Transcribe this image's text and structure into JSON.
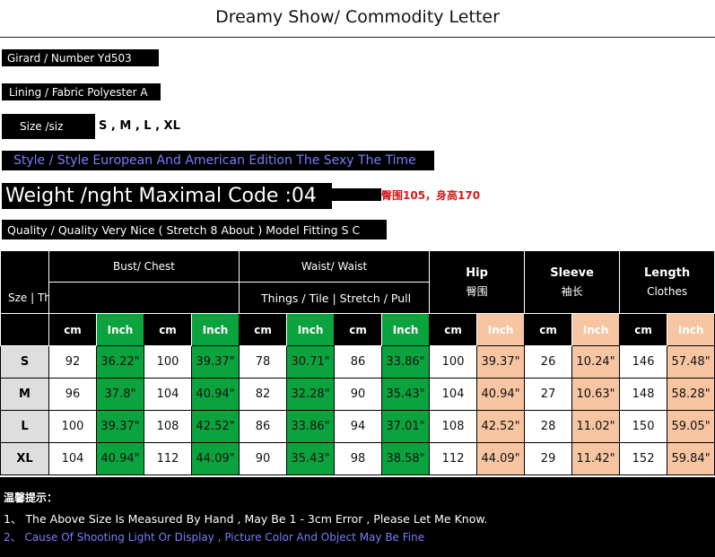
{
  "title": "Dreamy Show/ Commodity Letter",
  "info": {
    "number": "Girard / Number Yd503",
    "fabric": "Lining / Fabric Polyester A",
    "size_label": "Size /siz",
    "sizes": "S , M , L , XL",
    "style": "Style / Style European And American Edition The Sexy The Time",
    "weight": "Weight /nght Maximal Code :04",
    "model_note": "臀围105，身高170",
    "quality": "Quality / Quality Very Nice ( Stretch 8 About ) Model Fitting S C"
  },
  "table": {
    "size_header": "Sze | Things / Tile | Stretch / Stretching",
    "waist_sub": "Things / Tile | Stretch / Pull",
    "bust_header": "Bust/ Chest",
    "waist_header": "Waist/ Waist",
    "hip_header": "Hip",
    "hip_cn": "臀围",
    "sleeve_header": "Sleeve",
    "sleeve_cn": "袖长",
    "length_header": "Length",
    "length_sub": "Clothes",
    "unit_cm": "cm",
    "unit_inch": "Inch",
    "rows": [
      {
        "size": "S",
        "vals": [
          "92",
          "36.22\"",
          "100",
          "39.37\"",
          "78",
          "30.71\"",
          "86",
          "33.86\"",
          "100",
          "39.37\"",
          "26",
          "10.24\"",
          "146",
          "57.48\""
        ]
      },
      {
        "size": "M",
        "vals": [
          "96",
          "37.8\"",
          "104",
          "40.94\"",
          "82",
          "32.28\"",
          "90",
          "35.43\"",
          "104",
          "40.94\"",
          "27",
          "10.63\"",
          "148",
          "58.28\""
        ]
      },
      {
        "size": "L",
        "vals": [
          "100",
          "39.37\"",
          "108",
          "42.52\"",
          "86",
          "33.86\"",
          "94",
          "37.01\"",
          "108",
          "42.52\"",
          "28",
          "11.02\"",
          "150",
          "59.05\""
        ]
      },
      {
        "size": "XL",
        "vals": [
          "104",
          "40.94\"",
          "112",
          "44.09\"",
          "90",
          "35.43\"",
          "98",
          "38.58\"",
          "112",
          "44.09\"",
          "29",
          "11.42\"",
          "152",
          "59.84\""
        ]
      }
    ]
  },
  "notes": {
    "title": "温馨提示：",
    "line1": "1、 The Above Size Is Measured By Hand , May Be 1 - 3cm Error , Please Let Me Know.",
    "line2": "2、 Cause Of Shooting Light Or Display , Picture Color And Object May Be Fine"
  },
  "colors": {
    "inch_green": "#0aa33d",
    "inch_orange": "#f7c5a2",
    "style_blue": "#7b7bff",
    "note_red": "#d21c1c"
  }
}
